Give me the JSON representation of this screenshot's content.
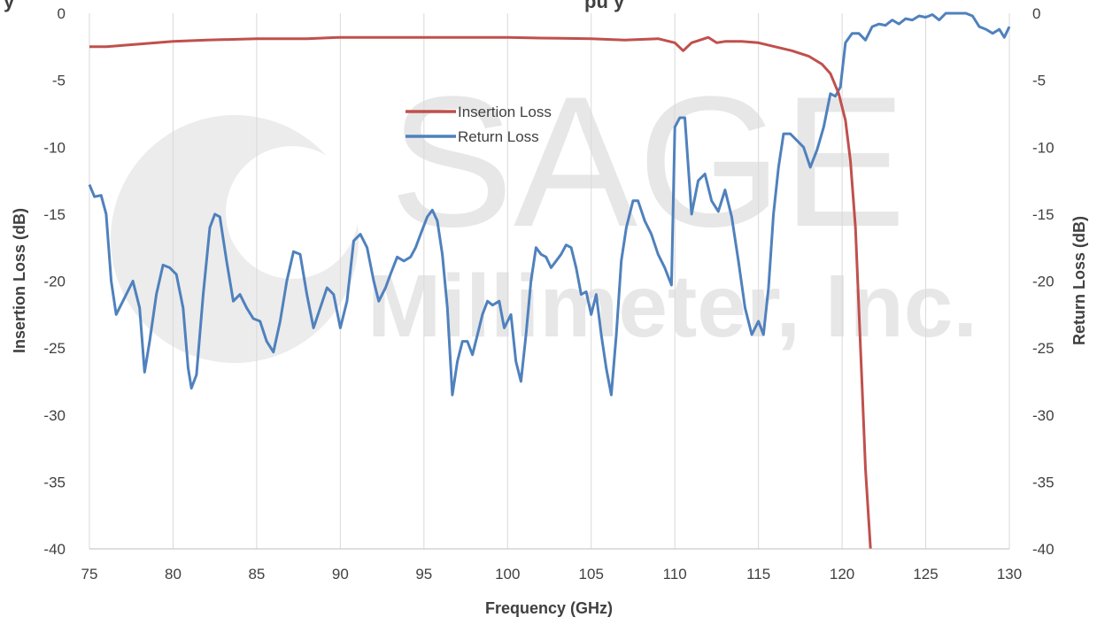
{
  "chart_data": {
    "type": "line",
    "title_fragment_left": "y",
    "title_fragment_right": "pu y",
    "xlabel": "Frequency (GHz)",
    "ylabel_left": "Insertion Loss (dB)",
    "ylabel_right": "Return Loss (dB)",
    "xlim": [
      75,
      130
    ],
    "ylim": [
      -40,
      0
    ],
    "x_ticks": [
      75,
      80,
      85,
      90,
      95,
      100,
      105,
      110,
      115,
      120,
      125,
      130
    ],
    "y_ticks": [
      0,
      -5,
      -10,
      -15,
      -20,
      -25,
      -30,
      -35,
      -40
    ],
    "grid": "vertical",
    "legend_position": "center-top",
    "watermark": {
      "line1": "SAGE",
      "line2": "Millimeter, Inc."
    },
    "series": [
      {
        "name": "Insertion Loss",
        "color": "#c0504d",
        "axis": "left",
        "points": [
          [
            75,
            -2.5
          ],
          [
            76,
            -2.5
          ],
          [
            77,
            -2.4
          ],
          [
            78,
            -2.3
          ],
          [
            80,
            -2.1
          ],
          [
            82,
            -2.0
          ],
          [
            85,
            -1.9
          ],
          [
            88,
            -1.9
          ],
          [
            90,
            -1.8
          ],
          [
            92,
            -1.8
          ],
          [
            95,
            -1.8
          ],
          [
            98,
            -1.8
          ],
          [
            100,
            -1.8
          ],
          [
            102,
            -1.85
          ],
          [
            105,
            -1.9
          ],
          [
            107,
            -2.0
          ],
          [
            109,
            -1.9
          ],
          [
            110,
            -2.2
          ],
          [
            110.5,
            -2.8
          ],
          [
            111,
            -2.2
          ],
          [
            111.5,
            -2.0
          ],
          [
            112,
            -1.8
          ],
          [
            112.5,
            -2.2
          ],
          [
            113,
            -2.1
          ],
          [
            114,
            -2.1
          ],
          [
            115,
            -2.2
          ],
          [
            116,
            -2.5
          ],
          [
            117,
            -2.8
          ],
          [
            118,
            -3.2
          ],
          [
            118.8,
            -3.8
          ],
          [
            119.3,
            -4.5
          ],
          [
            119.8,
            -6.0
          ],
          [
            120.2,
            -8.0
          ],
          [
            120.5,
            -11.0
          ],
          [
            120.8,
            -16.0
          ],
          [
            121.0,
            -22.0
          ],
          [
            121.2,
            -28.0
          ],
          [
            121.4,
            -34.0
          ],
          [
            121.6,
            -38.0
          ],
          [
            121.7,
            -40.0
          ]
        ]
      },
      {
        "name": "Return Loss",
        "color": "#4f81bd",
        "axis": "right",
        "points": [
          [
            75,
            -12.8
          ],
          [
            75.3,
            -13.7
          ],
          [
            75.7,
            -13.6
          ],
          [
            76.0,
            -15.0
          ],
          [
            76.3,
            -20.0
          ],
          [
            76.6,
            -22.5
          ],
          [
            77.0,
            -21.5
          ],
          [
            77.6,
            -20.0
          ],
          [
            78.0,
            -22.0
          ],
          [
            78.3,
            -26.8
          ],
          [
            78.6,
            -24.5
          ],
          [
            79.0,
            -21.0
          ],
          [
            79.4,
            -18.8
          ],
          [
            79.8,
            -19.0
          ],
          [
            80.2,
            -19.5
          ],
          [
            80.6,
            -22.0
          ],
          [
            80.9,
            -26.5
          ],
          [
            81.1,
            -28.0
          ],
          [
            81.4,
            -27.0
          ],
          [
            81.8,
            -21.0
          ],
          [
            82.2,
            -16.0
          ],
          [
            82.5,
            -15.0
          ],
          [
            82.8,
            -15.2
          ],
          [
            83.2,
            -18.5
          ],
          [
            83.6,
            -21.5
          ],
          [
            84.0,
            -21.0
          ],
          [
            84.4,
            -22.0
          ],
          [
            84.8,
            -22.8
          ],
          [
            85.2,
            -23.0
          ],
          [
            85.6,
            -24.5
          ],
          [
            86.0,
            -25.3
          ],
          [
            86.4,
            -23.0
          ],
          [
            86.8,
            -20.0
          ],
          [
            87.2,
            -17.8
          ],
          [
            87.6,
            -18.0
          ],
          [
            88.0,
            -21.0
          ],
          [
            88.4,
            -23.5
          ],
          [
            88.8,
            -22.0
          ],
          [
            89.2,
            -20.5
          ],
          [
            89.6,
            -21.0
          ],
          [
            90.0,
            -23.5
          ],
          [
            90.4,
            -21.5
          ],
          [
            90.8,
            -17.0
          ],
          [
            91.2,
            -16.5
          ],
          [
            91.6,
            -17.5
          ],
          [
            92.0,
            -20.0
          ],
          [
            92.3,
            -21.5
          ],
          [
            92.7,
            -20.5
          ],
          [
            93.0,
            -19.5
          ],
          [
            93.4,
            -18.2
          ],
          [
            93.8,
            -18.5
          ],
          [
            94.2,
            -18.2
          ],
          [
            94.5,
            -17.5
          ],
          [
            94.8,
            -16.5
          ],
          [
            95.2,
            -15.2
          ],
          [
            95.5,
            -14.7
          ],
          [
            95.8,
            -15.5
          ],
          [
            96.1,
            -18.0
          ],
          [
            96.4,
            -22.0
          ],
          [
            96.7,
            -28.5
          ],
          [
            97.0,
            -26.0
          ],
          [
            97.3,
            -24.5
          ],
          [
            97.6,
            -24.5
          ],
          [
            97.9,
            -25.5
          ],
          [
            98.2,
            -24.0
          ],
          [
            98.5,
            -22.5
          ],
          [
            98.8,
            -21.5
          ],
          [
            99.1,
            -21.8
          ],
          [
            99.5,
            -21.5
          ],
          [
            99.8,
            -23.5
          ],
          [
            100.2,
            -22.5
          ],
          [
            100.5,
            -26.0
          ],
          [
            100.8,
            -27.5
          ],
          [
            101.1,
            -24.0
          ],
          [
            101.4,
            -20.0
          ],
          [
            101.7,
            -17.5
          ],
          [
            102.0,
            -18.0
          ],
          [
            102.3,
            -18.2
          ],
          [
            102.6,
            -19.0
          ],
          [
            102.9,
            -18.5
          ],
          [
            103.2,
            -18.0
          ],
          [
            103.5,
            -17.3
          ],
          [
            103.8,
            -17.5
          ],
          [
            104.1,
            -19.0
          ],
          [
            104.4,
            -21.0
          ],
          [
            104.7,
            -20.8
          ],
          [
            105.0,
            -22.5
          ],
          [
            105.3,
            -21.0
          ],
          [
            105.6,
            -24.0
          ],
          [
            105.9,
            -26.5
          ],
          [
            106.2,
            -28.5
          ],
          [
            106.5,
            -24.0
          ],
          [
            106.8,
            -18.5
          ],
          [
            107.1,
            -16.0
          ],
          [
            107.5,
            -14.0
          ],
          [
            107.8,
            -14.0
          ],
          [
            108.2,
            -15.5
          ],
          [
            108.6,
            -16.5
          ],
          [
            109.0,
            -18.0
          ],
          [
            109.4,
            -19.0
          ],
          [
            109.8,
            -20.3
          ],
          [
            110.0,
            -8.5
          ],
          [
            110.3,
            -7.8
          ],
          [
            110.6,
            -7.8
          ],
          [
            111.0,
            -15.0
          ],
          [
            111.4,
            -12.5
          ],
          [
            111.8,
            -12.0
          ],
          [
            112.2,
            -14.0
          ],
          [
            112.6,
            -14.8
          ],
          [
            113.0,
            -13.2
          ],
          [
            113.4,
            -15.2
          ],
          [
            113.8,
            -18.5
          ],
          [
            114.2,
            -22.0
          ],
          [
            114.6,
            -24.0
          ],
          [
            115.0,
            -23.0
          ],
          [
            115.3,
            -24.0
          ],
          [
            115.6,
            -20.5
          ],
          [
            115.9,
            -15.0
          ],
          [
            116.2,
            -11.5
          ],
          [
            116.5,
            -9.0
          ],
          [
            116.9,
            -9.0
          ],
          [
            117.3,
            -9.5
          ],
          [
            117.7,
            -10.0
          ],
          [
            118.1,
            -11.5
          ],
          [
            118.5,
            -10.2
          ],
          [
            118.9,
            -8.5
          ],
          [
            119.3,
            -6.0
          ],
          [
            119.6,
            -6.2
          ],
          [
            119.9,
            -5.5
          ],
          [
            120.2,
            -2.2
          ],
          [
            120.6,
            -1.5
          ],
          [
            121.0,
            -1.5
          ],
          [
            121.4,
            -2.0
          ],
          [
            121.8,
            -1.0
          ],
          [
            122.2,
            -0.8
          ],
          [
            122.6,
            -0.9
          ],
          [
            123.0,
            -0.5
          ],
          [
            123.4,
            -0.8
          ],
          [
            123.8,
            -0.4
          ],
          [
            124.2,
            -0.5
          ],
          [
            124.6,
            -0.2
          ],
          [
            125.0,
            -0.3
          ],
          [
            125.4,
            -0.1
          ],
          [
            125.8,
            -0.5
          ],
          [
            126.2,
            0.0
          ],
          [
            126.6,
            0.0
          ],
          [
            127.0,
            0.0
          ],
          [
            127.4,
            0.0
          ],
          [
            127.8,
            -0.2
          ],
          [
            128.2,
            -1.0
          ],
          [
            128.6,
            -1.2
          ],
          [
            129.0,
            -1.5
          ],
          [
            129.4,
            -1.2
          ],
          [
            129.7,
            -1.8
          ],
          [
            130.0,
            -1.0
          ]
        ]
      }
    ]
  }
}
